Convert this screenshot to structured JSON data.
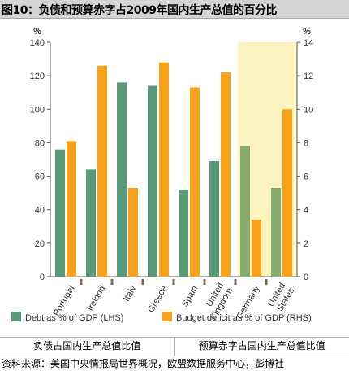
{
  "page": {
    "title": "图10：负债和预算赤字占2009年国内生产总值的百分比",
    "table_headers": [
      "负债占国内生产总值比值",
      "预算赤字占国内生产总值比值"
    ],
    "source": "资料来源：美国中央情报局世界概况，欧盟数据服务中心，彭博社"
  },
  "chart_data": {
    "type": "bar",
    "categories": [
      "Portugal",
      "Ireland",
      "Italy",
      "Greece",
      "Spain",
      "United Kingdom",
      "Germany",
      "United States"
    ],
    "series": [
      {
        "name": "Debt as % of GDP (LHS)",
        "axis": "left",
        "values": [
          76,
          64,
          116,
          114,
          52,
          69,
          78,
          53
        ]
      },
      {
        "name": "Budget deficit as % of GDP (RHS)",
        "axis": "right",
        "values": [
          8.1,
          12.6,
          5.3,
          12.8,
          11.3,
          12.2,
          3.4,
          10.0
        ]
      }
    ],
    "left_axis": {
      "label": "%",
      "min": 0,
      "max": 140,
      "ticks": [
        0,
        20,
        40,
        60,
        80,
        100,
        120,
        140
      ]
    },
    "right_axis": {
      "label": "%",
      "min": 0,
      "max": 14,
      "ticks": [
        0,
        2,
        4,
        6,
        8,
        10,
        12,
        14
      ]
    },
    "highlight_categories": [
      "Germany",
      "United States"
    ],
    "legend_position": "bottom",
    "grid": false,
    "colors": {
      "debt": "#5a9a7a",
      "debt_highlight": "#86ac6e",
      "deficit": "#f7a21b",
      "plot_background": "#ffffff",
      "highlight_background": "#fdf3bf",
      "axis": "#555555",
      "tick_mark": "#7a6a5a"
    }
  }
}
